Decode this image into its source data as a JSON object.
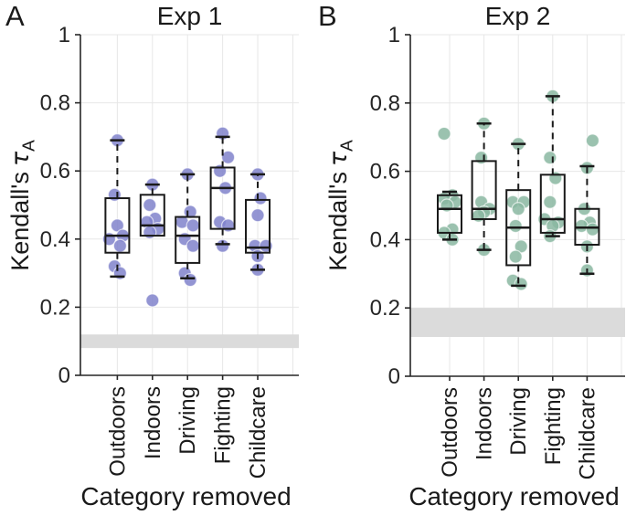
{
  "figure": {
    "background": "#ffffff",
    "panels": [
      {
        "letter": "A",
        "title": "Exp 1",
        "ylabel": {
          "prefix": "Kendall's",
          "tau": "τ",
          "sub": "A"
        },
        "xlabel": "Category removed"
      },
      {
        "letter": "B",
        "title": "Exp 2",
        "ylabel": {
          "prefix": "Kendall's",
          "tau": "τ",
          "sub": "A"
        },
        "xlabel": "Category removed"
      }
    ]
  },
  "chart_data": [
    {
      "type": "boxplot",
      "panel_label": "A",
      "title": "Exp 1",
      "xlabel": "Category removed",
      "ylabel": "Kendall's τA",
      "ylim": [
        0,
        1
      ],
      "yticks": [
        0,
        0.2,
        0.4,
        0.6,
        0.8,
        1
      ],
      "grid": true,
      "categories": [
        "Outdoors",
        "Indoors",
        "Driving",
        "Fighting",
        "Childcare"
      ],
      "point_color": "#8083cb",
      "box_color": "#1a1a1a",
      "noise_band": {
        "ymin": 0.08,
        "ymax": 0.12,
        "color": "#dbdbdb"
      },
      "boxes": [
        {
          "category": "Outdoors",
          "whisker_low": 0.29,
          "q1": 0.36,
          "median": 0.41,
          "q3": 0.52,
          "whisker_high": 0.69,
          "points": [
            [
              0.69,
              0
            ],
            [
              0.53,
              -1
            ],
            [
              0.44,
              0
            ],
            [
              0.41,
              2
            ],
            [
              0.4,
              -3
            ],
            [
              0.38,
              1
            ],
            [
              0.32,
              -1
            ],
            [
              0.3,
              1
            ]
          ]
        },
        {
          "category": "Indoors",
          "whisker_low": 0.41,
          "q1": 0.41,
          "median": 0.44,
          "q3": 0.53,
          "whisker_high": 0.56,
          "points": [
            [
              0.56,
              0
            ],
            [
              0.5,
              -1
            ],
            [
              0.46,
              1
            ],
            [
              0.45,
              -2
            ],
            [
              0.43,
              2
            ],
            [
              0.42,
              -1
            ],
            [
              0.22,
              0
            ]
          ]
        },
        {
          "category": "Driving",
          "whisker_low": 0.285,
          "q1": 0.33,
          "median": 0.41,
          "q3": 0.465,
          "whisker_high": 0.59,
          "points": [
            [
              0.59,
              0
            ],
            [
              0.48,
              1
            ],
            [
              0.45,
              -2
            ],
            [
              0.44,
              2
            ],
            [
              0.4,
              -1
            ],
            [
              0.38,
              2
            ],
            [
              0.3,
              -1
            ],
            [
              0.28,
              1
            ]
          ]
        },
        {
          "category": "Fighting",
          "whisker_low": 0.385,
          "q1": 0.43,
          "median": 0.55,
          "q3": 0.61,
          "whisker_high": 0.7,
          "points": [
            [
              0.71,
              0
            ],
            [
              0.64,
              2
            ],
            [
              0.6,
              -1
            ],
            [
              0.55,
              1
            ],
            [
              0.45,
              -1
            ],
            [
              0.44,
              2
            ],
            [
              0.38,
              0
            ]
          ]
        },
        {
          "category": "Childcare",
          "whisker_low": 0.31,
          "q1": 0.36,
          "median": 0.375,
          "q3": 0.515,
          "whisker_high": 0.59,
          "points": [
            [
              0.59,
              0
            ],
            [
              0.52,
              1
            ],
            [
              0.47,
              0
            ],
            [
              0.38,
              -1
            ],
            [
              0.38,
              3
            ],
            [
              0.35,
              0
            ],
            [
              0.31,
              0
            ]
          ]
        }
      ]
    },
    {
      "type": "boxplot",
      "panel_label": "B",
      "title": "Exp 2",
      "xlabel": "Category removed",
      "ylabel": "Kendall's τA",
      "ylim": [
        0,
        1
      ],
      "yticks": [
        0,
        0.2,
        0.4,
        0.6,
        0.8,
        1
      ],
      "grid": true,
      "categories": [
        "Outdoors",
        "Indoors",
        "Driving",
        "Fighting",
        "Childcare"
      ],
      "point_color": "#8ab7a1",
      "box_color": "#1a1a1a",
      "noise_band": {
        "ymin": 0.115,
        "ymax": 0.2,
        "color": "#dbdbdb"
      },
      "boxes": [
        {
          "category": "Outdoors",
          "whisker_low": 0.4,
          "q1": 0.42,
          "median": 0.49,
          "q3": 0.53,
          "whisker_high": 0.54,
          "points": [
            [
              0.71,
              -2
            ],
            [
              0.53,
              1
            ],
            [
              0.52,
              -2
            ],
            [
              0.51,
              2
            ],
            [
              0.5,
              -1
            ],
            [
              0.43,
              1
            ],
            [
              0.42,
              -2
            ],
            [
              0.4,
              1
            ]
          ]
        },
        {
          "category": "Indoors",
          "whisker_low": 0.37,
          "q1": 0.46,
          "median": 0.49,
          "q3": 0.63,
          "whisker_high": 0.74,
          "points": [
            [
              0.74,
              0
            ],
            [
              0.64,
              -1
            ],
            [
              0.51,
              -1
            ],
            [
              0.49,
              2
            ],
            [
              0.48,
              0
            ],
            [
              0.47,
              -2
            ],
            [
              0.37,
              0
            ]
          ]
        },
        {
          "category": "Driving",
          "whisker_low": 0.265,
          "q1": 0.325,
          "median": 0.435,
          "q3": 0.545,
          "whisker_high": 0.68,
          "points": [
            [
              0.68,
              0
            ],
            [
              0.51,
              -2
            ],
            [
              0.51,
              2
            ],
            [
              0.49,
              0
            ],
            [
              0.44,
              -1
            ],
            [
              0.38,
              1
            ],
            [
              0.35,
              -1
            ],
            [
              0.28,
              -2
            ],
            [
              0.27,
              1
            ]
          ]
        },
        {
          "category": "Fighting",
          "whisker_low": 0.41,
          "q1": 0.42,
          "median": 0.46,
          "q3": 0.59,
          "whisker_high": 0.82,
          "points": [
            [
              0.82,
              0
            ],
            [
              0.64,
              -1
            ],
            [
              0.58,
              1
            ],
            [
              0.51,
              -1
            ],
            [
              0.46,
              -3
            ],
            [
              0.45,
              2
            ],
            [
              0.44,
              0
            ],
            [
              0.41,
              -1
            ]
          ]
        },
        {
          "category": "Childcare",
          "whisker_low": 0.3,
          "q1": 0.385,
          "median": 0.435,
          "q3": 0.49,
          "whisker_high": 0.615,
          "points": [
            [
              0.69,
              2
            ],
            [
              0.61,
              0
            ],
            [
              0.49,
              -1
            ],
            [
              0.45,
              1
            ],
            [
              0.44,
              -2
            ],
            [
              0.43,
              2
            ],
            [
              0.38,
              0
            ],
            [
              0.31,
              0
            ]
          ]
        }
      ]
    }
  ]
}
